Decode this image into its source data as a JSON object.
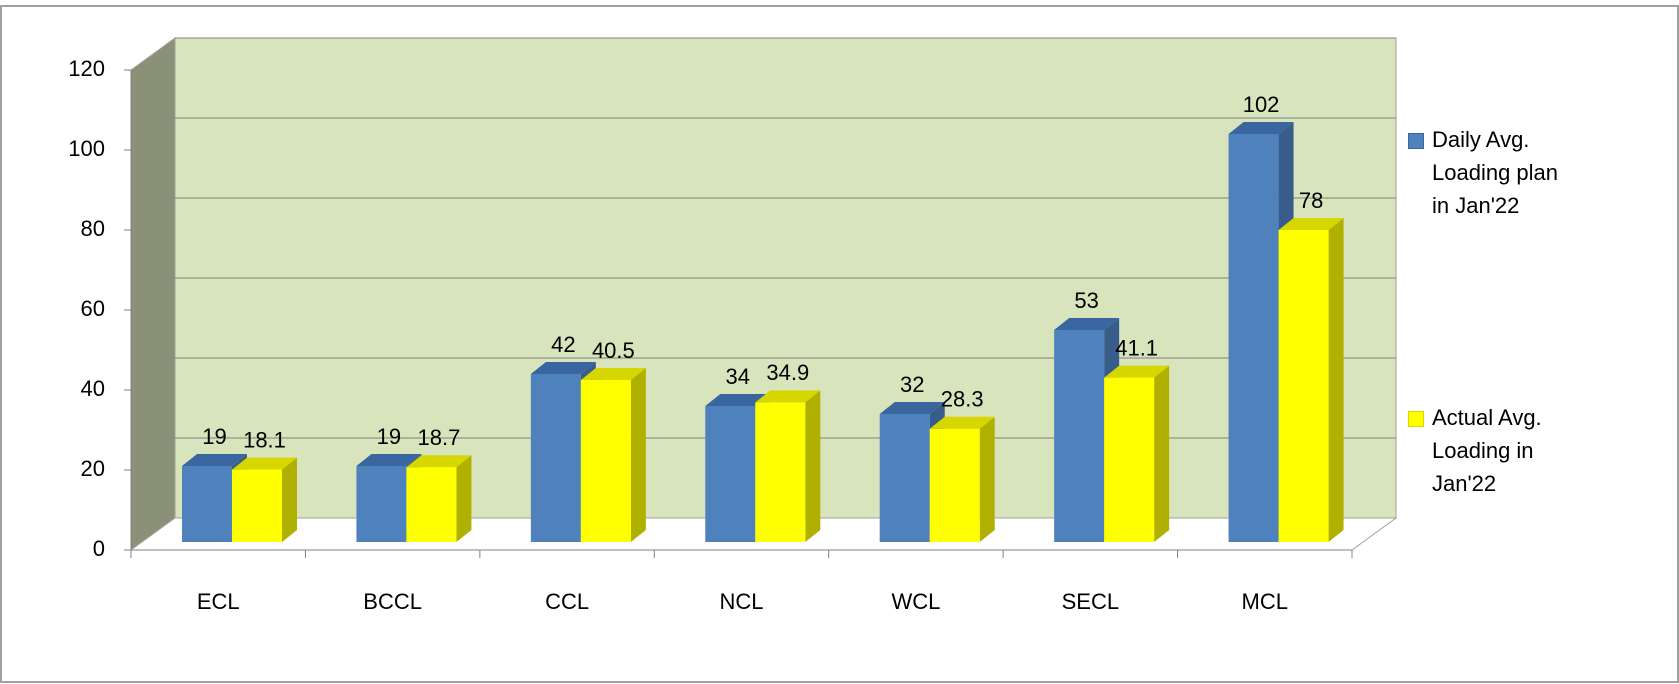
{
  "chart_data": {
    "type": "bar3d",
    "categories": [
      "ECL",
      "BCCL",
      "CCL",
      "NCL",
      "WCL",
      "SECL",
      "MCL"
    ],
    "series": [
      {
        "name": "Daily Avg. Loading plan in Jan'22",
        "color": "#4f81bd",
        "values": [
          19,
          19,
          42,
          34,
          32,
          53,
          102
        ]
      },
      {
        "name": "Actual Avg. Loading in Jan'22",
        "color": "#ffff00",
        "values": [
          18.1,
          18.7,
          40.5,
          34.9,
          28.3,
          41.1,
          78
        ]
      }
    ],
    "ylim": [
      0,
      120
    ],
    "yticks": [
      0,
      20,
      40,
      60,
      80,
      100,
      120
    ],
    "grid": true,
    "legend": "right"
  }
}
